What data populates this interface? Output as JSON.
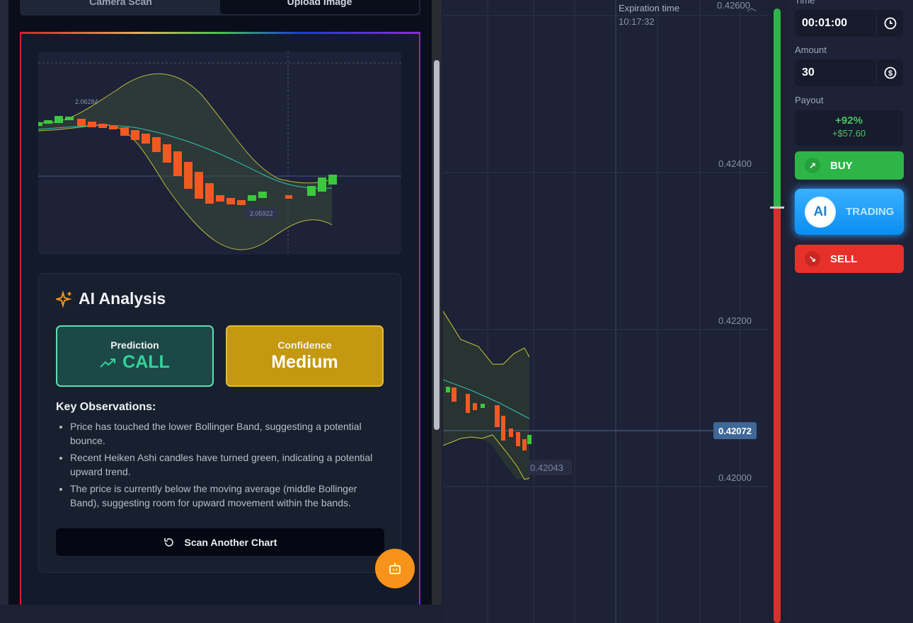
{
  "scanner": {
    "tabs": [
      {
        "label": "Camera Scan",
        "active": false
      },
      {
        "label": "Upload Image",
        "active": true
      }
    ],
    "screenshot": {
      "price_high": "2.06284",
      "price_low": "2.05922"
    },
    "analysis": {
      "title": "AI Analysis",
      "prediction_label": "Prediction",
      "prediction_value": "CALL",
      "confidence_label": "Confidence",
      "confidence_value": "Medium",
      "observations_title": "Key Observations:",
      "observations": [
        "Price has touched the lower Bollinger Band, suggesting a potential bounce.",
        "Recent Heiken Ashi candles have turned green, indicating a potential upward trend.",
        "The price is currently below the moving average (middle Bollinger Band), suggesting room for upward movement within the bands."
      ],
      "scan_button": "Scan Another Chart"
    }
  },
  "chart": {
    "expiration_label": "Expiration time",
    "expiration_time": "10:17:32",
    "y_labels": [
      "0.42600",
      "0.42400",
      "0.42200",
      "0.42000"
    ],
    "current_price": "0.42072",
    "low_marker": "0.42043"
  },
  "trade": {
    "time_label": "Time",
    "time_value": "00:01:00",
    "amount_label": "Amount",
    "amount_value": "30",
    "payout_label": "Payout",
    "payout_percent": "+92%",
    "payout_amount": "+$57.60",
    "buy": "BUY",
    "ai_badge": "AI",
    "ai_label": "TRADING",
    "sell": "SELL",
    "sentiment_buy_fraction": 0.32
  },
  "colors": {
    "buy": "#2db547",
    "sell": "#e8302a",
    "call": "#34d399",
    "confidence": "#c4980f",
    "bot": "#f7931a"
  }
}
